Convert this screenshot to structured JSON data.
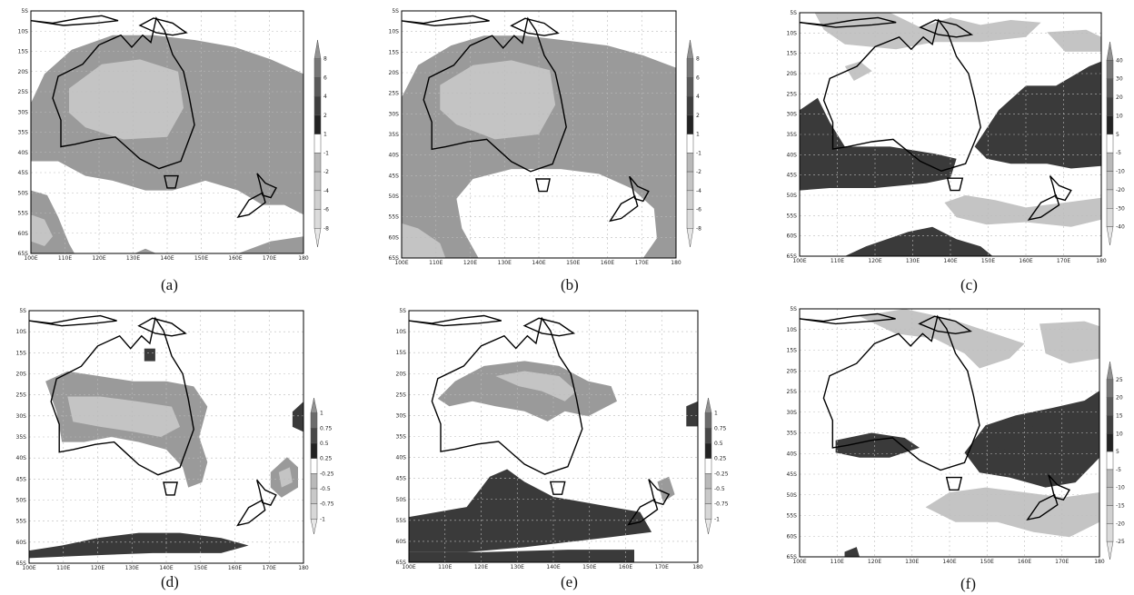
{
  "panels": [
    {
      "id": "a",
      "caption": "(a)",
      "colorbar": [
        "8",
        "6",
        "4",
        "2",
        "1",
        "-1",
        "-2",
        "-4",
        "-6",
        "-8"
      ]
    },
    {
      "id": "b",
      "caption": "(b)",
      "colorbar": [
        "8",
        "6",
        "4",
        "2",
        "1",
        "-1",
        "-2",
        "-4",
        "-6",
        "-8"
      ]
    },
    {
      "id": "c",
      "caption": "(c)",
      "colorbar": [
        "40",
        "30",
        "20",
        "10",
        "5",
        "-5",
        "-10",
        "-20",
        "-30",
        "-40"
      ]
    },
    {
      "id": "d",
      "caption": "(d)",
      "colorbar": [
        "1",
        "0.75",
        "0.5",
        "0.25",
        "-0.25",
        "-0.5",
        "-0.75",
        "-1"
      ]
    },
    {
      "id": "e",
      "caption": "(e)",
      "colorbar": [
        "1",
        "0.75",
        "0.5",
        "0.25",
        "-0.25",
        "-0.5",
        "-0.75",
        "-1"
      ]
    },
    {
      "id": "f",
      "caption": "(f)",
      "colorbar": [
        "25",
        "20",
        "15",
        "10",
        "5",
        "-5",
        "-10",
        "-15",
        "-20",
        "-25"
      ]
    }
  ],
  "lat_labels": [
    "5S",
    "10S",
    "15S",
    "20S",
    "25S",
    "30S",
    "35S",
    "40S",
    "45S",
    "50S",
    "55S",
    "60S",
    "65S"
  ],
  "lon_labels": [
    "100E",
    "110E",
    "120E",
    "130E",
    "140E",
    "150E",
    "160E",
    "170E",
    "180"
  ],
  "colors": {
    "dark": "#3a3a3a",
    "mid": "#9a9a9a",
    "light": "#c4c4c4",
    "coast": "#000000",
    "grid": "#bbbbbb"
  }
}
